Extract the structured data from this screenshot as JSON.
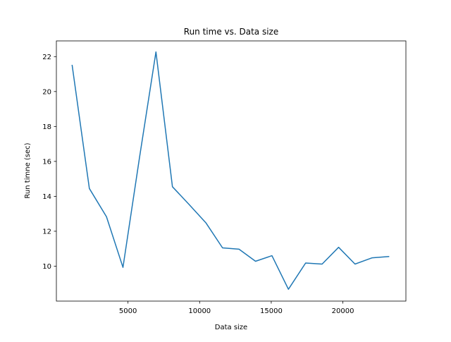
{
  "chart_data": {
    "type": "line",
    "title": "Run time vs. Data size",
    "xlabel": "Data size",
    "ylabel": "Run timne (sec)",
    "xlim": [
      0,
      24400
    ],
    "ylim": [
      8.0,
      22.9
    ],
    "xticks": [
      5000,
      10000,
      15000,
      20000
    ],
    "yticks": [
      10,
      12,
      14,
      16,
      18,
      20,
      22
    ],
    "grid": false,
    "series": [
      {
        "color": "#1f77b4",
        "x": [
          1100,
          2300,
          3500,
          4650,
          5800,
          6950,
          8100,
          9250,
          10450,
          11600,
          12750,
          13900,
          15050,
          16200,
          17400,
          18550,
          19700,
          20850,
          22050,
          23200
        ],
        "y": [
          21.5,
          14.45,
          12.83,
          9.93,
          16.2,
          22.27,
          14.55,
          13.55,
          12.47,
          11.05,
          10.97,
          10.28,
          10.6,
          8.68,
          10.18,
          10.12,
          11.08,
          10.12,
          10.48,
          10.55
        ]
      }
    ]
  }
}
